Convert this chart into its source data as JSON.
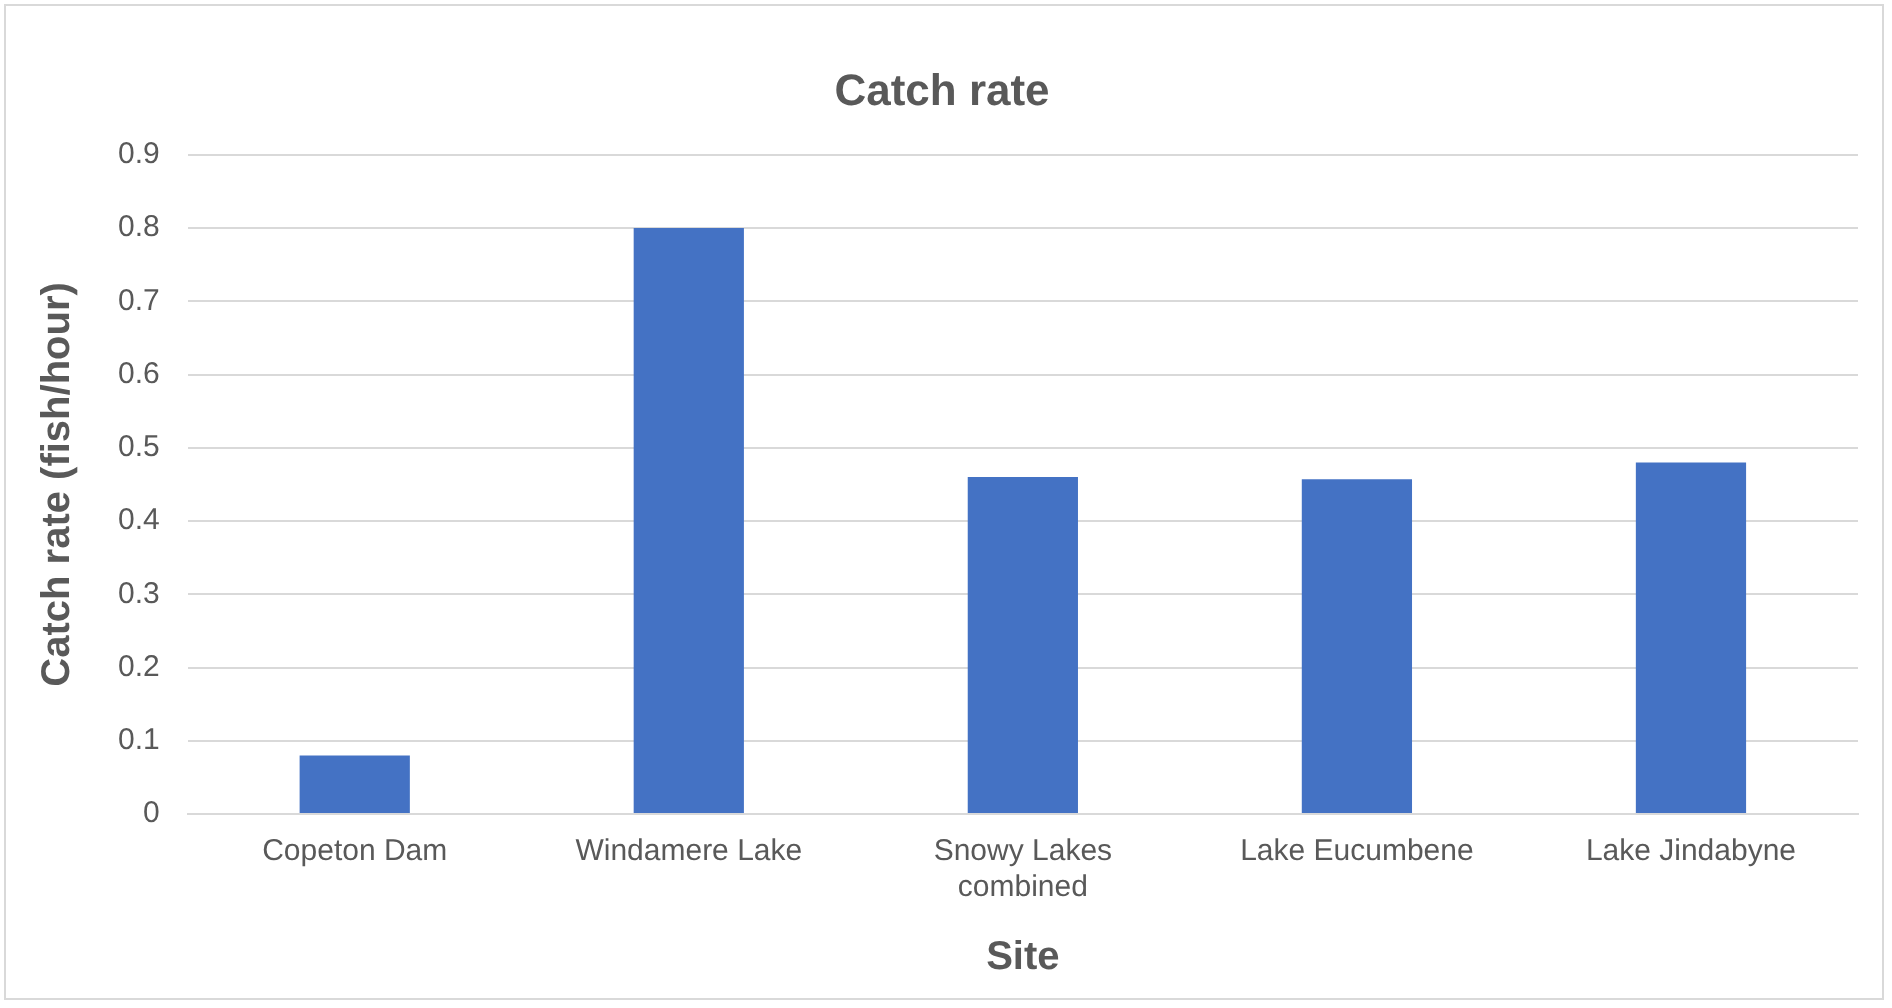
{
  "chart_data": {
    "type": "bar",
    "title": "Catch rate",
    "xlabel": "Site",
    "ylabel": "Catch rate (fish/hour)",
    "categories": [
      "Copeton Dam",
      "Windamere Lake",
      "Snowy Lakes combined",
      "Lake Eucumbene",
      "Lake Jindabyne"
    ],
    "values": [
      0.08,
      0.8,
      0.46,
      0.457,
      0.48
    ],
    "color": "#4472c4",
    "ylim": [
      0,
      0.9
    ],
    "yticks": [
      0,
      0.1,
      0.2,
      0.3,
      0.4,
      0.5,
      0.6,
      0.7,
      0.8,
      0.9
    ],
    "grid": "y",
    "legend": false
  }
}
